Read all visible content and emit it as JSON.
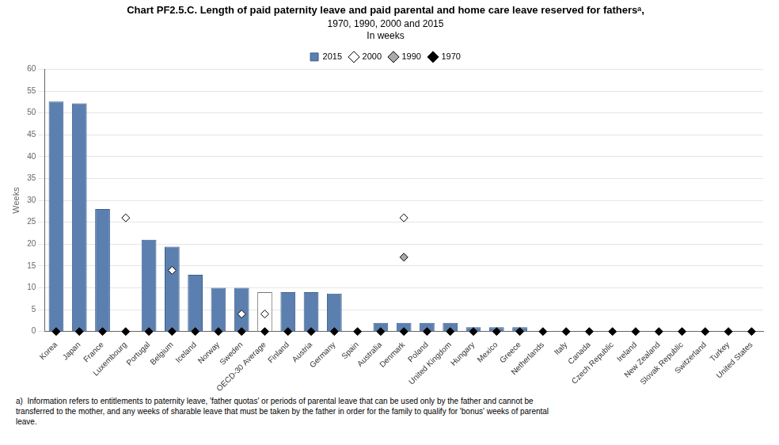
{
  "chart_data": {
    "type": "bar",
    "title": "Chart PF2.5.C. Length of paid paternity leave and paid parental and home care leave reserved for fathersᵃ,",
    "subtitle": [
      "1970, 1990, 2000 and 2015",
      "In weeks"
    ],
    "ylabel": "Weeks",
    "annotations": [
      "a)  Information refers to entitlements to paternity leave, 'father quotas' or periods of parental leave that can be used only by the father and cannot be\ntransferred to the mother, and any weeks of sharable leave that must be taken by the father in order for the family to qualify for 'bonus' weeks of parental\nleave."
    ],
    "categories": [
      "Korea",
      "Japan",
      "France",
      "Luxembourg",
      "Portugal",
      "Belgium",
      "Iceland",
      "Norway",
      "Sweden",
      "OECD-30 Average",
      "Finland",
      "Austria",
      "Germany",
      "Spain",
      "Australia",
      "Denmark",
      "Poland",
      "United Kingdom",
      "Hungary",
      "Mexico",
      "Greece",
      "Netherlands",
      "Italy",
      "Canada",
      "Czech Republic",
      "Ireland",
      "New Zealand",
      "Slovak Republic",
      "Switzerland",
      "Turkey",
      "United States"
    ],
    "series": [
      {
        "name": "2015",
        "type": "bar",
        "color": "#5b7faf",
        "colors": [
          "#5b7faf",
          "#5b7faf",
          "#5b7faf",
          "#5b7faf",
          "#5b7faf",
          "#5b7faf",
          "#5b7faf",
          "#5b7faf",
          "#5b7faf",
          "#ffffff",
          "#5b7faf",
          "#5b7faf",
          "#5b7faf",
          "#5b7faf",
          "#5b7faf",
          "#5b7faf",
          "#5b7faf",
          "#5b7faf",
          "#5b7faf",
          "#5b7faf",
          "#5b7faf",
          "#5b7faf",
          "#5b7faf",
          "#5b7faf",
          "#5b7faf",
          "#5b7faf",
          "#5b7faf",
          "#5b7faf",
          "#5b7faf",
          "#5b7faf",
          "#5b7faf"
        ],
        "values": [
          52.6,
          52.2,
          28.0,
          0,
          21.0,
          19.4,
          13.0,
          10.0,
          10.0,
          9.0,
          9.0,
          9.0,
          8.7,
          0,
          2.0,
          2.0,
          2.0,
          2.0,
          1.0,
          1.0,
          1.0,
          0,
          0,
          0,
          0,
          0,
          0,
          0,
          0,
          0,
          0
        ]
      },
      {
        "name": "2000",
        "type": "scatter",
        "marker": "diamond",
        "color": "#ffffff",
        "values": [
          null,
          null,
          null,
          26.0,
          null,
          14.0,
          null,
          null,
          4.0,
          4.0,
          null,
          null,
          null,
          null,
          null,
          26.0,
          null,
          null,
          null,
          null,
          null,
          null,
          null,
          null,
          null,
          null,
          null,
          null,
          null,
          null,
          null
        ]
      },
      {
        "name": "1990",
        "type": "scatter",
        "marker": "diamond",
        "color": "#aaaaaa",
        "values": [
          null,
          null,
          null,
          null,
          null,
          null,
          null,
          null,
          null,
          null,
          null,
          null,
          null,
          null,
          null,
          17.0,
          null,
          null,
          null,
          null,
          null,
          null,
          null,
          null,
          null,
          null,
          null,
          null,
          null,
          null,
          null
        ]
      },
      {
        "name": "1970",
        "type": "scatter",
        "marker": "diamond",
        "color": "#000000",
        "values": [
          0,
          0,
          0,
          0,
          0,
          0,
          0,
          0,
          0,
          0,
          0,
          0,
          0,
          0,
          0,
          0,
          0,
          0,
          0,
          0,
          0,
          0,
          0,
          0,
          0,
          0,
          0,
          0,
          0,
          0,
          0
        ]
      }
    ],
    "ylim": [
      0,
      60
    ],
    "yticks": [
      0,
      5,
      10,
      15,
      20,
      25,
      30,
      35,
      40,
      45,
      50,
      55,
      60
    ],
    "grid": true,
    "legend": "top"
  }
}
